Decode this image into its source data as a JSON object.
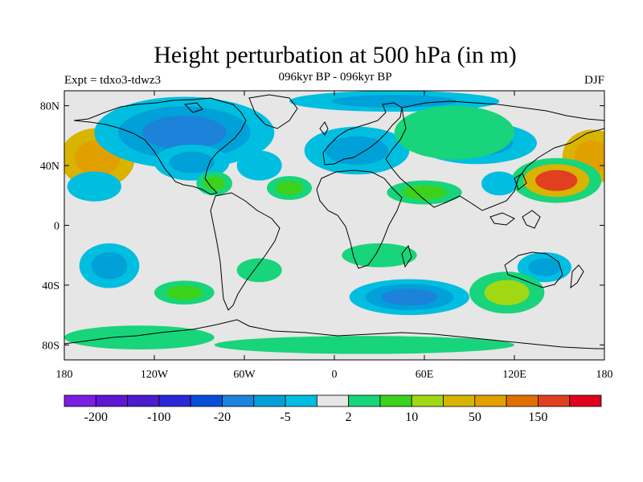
{
  "header": {
    "title": "Height perturbation at 500 hPa (in m)",
    "subtitle": "096kyr BP - 096kyr BP",
    "experiment": "Expt = tdxo3-tdwz3",
    "season": "DJF"
  },
  "map": {
    "lat_ticks": [
      "80N",
      "40N",
      "0",
      "40S",
      "80S"
    ],
    "lat_values": [
      80,
      40,
      0,
      -40,
      -80
    ],
    "lon_ticks": [
      "180",
      "120W",
      "60W",
      "0",
      "60E",
      "120E",
      "180"
    ],
    "lon_values": [
      -180,
      -120,
      -60,
      0,
      60,
      120,
      180
    ],
    "lat_range": [
      -90,
      90
    ],
    "lon_range": [
      -180,
      180
    ],
    "background": "#e6e6e6"
  },
  "colorbar": {
    "colors": [
      "#7a1fe0",
      "#6315d4",
      "#4a1ccc",
      "#2a28d6",
      "#0a4ed8",
      "#1c82da",
      "#00a0d8",
      "#00bee0",
      "#e6e6e6",
      "#18d47a",
      "#3cd21c",
      "#a0d814",
      "#d8b400",
      "#e0a000",
      "#e07000",
      "#e04020",
      "#e0001e"
    ],
    "labels": [
      "-200",
      "-100",
      "-20",
      "-5",
      "2",
      "10",
      "50",
      "150"
    ],
    "label_boundaries": [
      1,
      3,
      5,
      7,
      9,
      11,
      13,
      15
    ]
  },
  "field": {
    "blobs": [
      {
        "lon": -158,
        "lat": 45,
        "rx": 25,
        "ry": 20,
        "levels": [
          12,
          13
        ]
      },
      {
        "lon": 172,
        "lat": 46,
        "rx": 20,
        "ry": 18,
        "levels": [
          12,
          13
        ]
      },
      {
        "lon": 148,
        "lat": 30,
        "rx": 30,
        "ry": 15,
        "levels": [
          9,
          12,
          15
        ]
      },
      {
        "lon": -160,
        "lat": 26,
        "rx": 18,
        "ry": 10,
        "levels": [
          7
        ]
      },
      {
        "lon": -100,
        "lat": 62,
        "rx": 60,
        "ry": 24,
        "levels": [
          7,
          6,
          5
        ]
      },
      {
        "lon": -95,
        "lat": 42,
        "rx": 25,
        "ry": 12,
        "levels": [
          7,
          6
        ]
      },
      {
        "lon": -50,
        "lat": 40,
        "rx": 15,
        "ry": 10,
        "levels": [
          7
        ]
      },
      {
        "lon": 40,
        "lat": 83,
        "rx": 70,
        "ry": 7,
        "levels": [
          7,
          6
        ]
      },
      {
        "lon": 95,
        "lat": 55,
        "rx": 40,
        "ry": 14,
        "levels": [
          7,
          6
        ]
      },
      {
        "lon": 15,
        "lat": 50,
        "rx": 35,
        "ry": 16,
        "levels": [
          7,
          6
        ]
      },
      {
        "lon": -80,
        "lat": 28,
        "rx": 12,
        "ry": 8,
        "levels": [
          9,
          10
        ]
      },
      {
        "lon": -30,
        "lat": 25,
        "rx": 15,
        "ry": 8,
        "levels": [
          9,
          10
        ]
      },
      {
        "lon": 60,
        "lat": 22,
        "rx": 25,
        "ry": 8,
        "levels": [
          9,
          10
        ]
      },
      {
        "lon": 110,
        "lat": 28,
        "rx": 12,
        "ry": 8,
        "levels": [
          7
        ]
      },
      {
        "lon": -150,
        "lat": -27,
        "rx": 20,
        "ry": 15,
        "levels": [
          7,
          6
        ]
      },
      {
        "lon": 50,
        "lat": -48,
        "rx": 40,
        "ry": 12,
        "levels": [
          7,
          6,
          5
        ]
      },
      {
        "lon": 140,
        "lat": -28,
        "rx": 18,
        "ry": 10,
        "levels": [
          7,
          6
        ]
      },
      {
        "lon": 115,
        "lat": -45,
        "rx": 25,
        "ry": 14,
        "levels": [
          9,
          11
        ]
      },
      {
        "lon": -100,
        "lat": -45,
        "rx": 20,
        "ry": 8,
        "levels": [
          9,
          10
        ]
      },
      {
        "lon": 30,
        "lat": -20,
        "rx": 25,
        "ry": 8,
        "levels": [
          9
        ]
      },
      {
        "lon": -50,
        "lat": -30,
        "rx": 15,
        "ry": 8,
        "levels": [
          9
        ]
      },
      {
        "lon": 20,
        "lat": -80,
        "rx": 100,
        "ry": 6,
        "levels": [
          9
        ]
      },
      {
        "lon": -130,
        "lat": -75,
        "rx": 50,
        "ry": 8,
        "levels": [
          9
        ]
      },
      {
        "lon": 80,
        "lat": 62,
        "rx": 40,
        "ry": 18,
        "levels": [
          9
        ]
      }
    ]
  },
  "colors": {
    "land_outline": "#000000",
    "frame": "#000000"
  }
}
